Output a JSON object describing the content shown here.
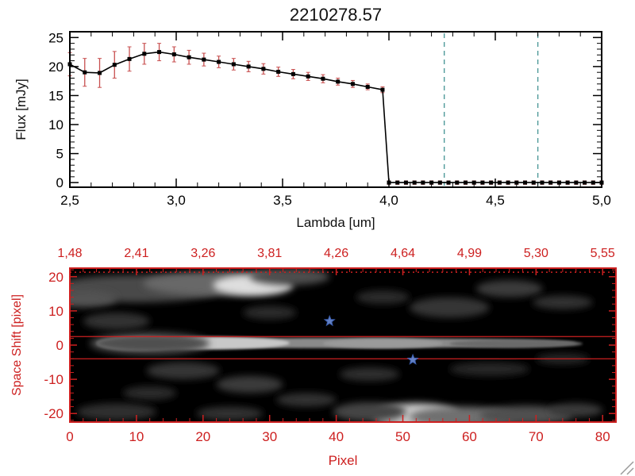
{
  "window": {
    "background": "#ffffff"
  },
  "chart_data": [
    {
      "type": "line",
      "title": "2210278.57",
      "xlabel": "Lambda [um]",
      "ylabel": "Flux [mJy]",
      "xlim": [
        2.5,
        5.0
      ],
      "ylim": [
        0,
        25
      ],
      "grid": false,
      "line_color": "#000000",
      "marker": "filled-square",
      "error_color": "#c85050",
      "axis_color": "#000000",
      "x_ticks": [
        {
          "v": 2.5,
          "label": "2,5"
        },
        {
          "v": 3.0,
          "label": "3,0"
        },
        {
          "v": 3.5,
          "label": "3,5"
        },
        {
          "v": 4.0,
          "label": "4,0"
        },
        {
          "v": 4.5,
          "label": "4,5"
        },
        {
          "v": 5.0,
          "label": "5,0"
        }
      ],
      "y_ticks": [
        {
          "v": 0,
          "label": "0"
        },
        {
          "v": 5,
          "label": "5"
        },
        {
          "v": 10,
          "label": "10"
        },
        {
          "v": 15,
          "label": "15"
        },
        {
          "v": 20,
          "label": "20"
        },
        {
          "v": 25,
          "label": "25"
        }
      ],
      "dashed_vlines": {
        "color": "#4e9a9a",
        "values": [
          4.26,
          4.7
        ]
      },
      "x": [
        2.5,
        2.57,
        2.64,
        2.71,
        2.78,
        2.85,
        2.92,
        2.99,
        3.06,
        3.13,
        3.2,
        3.27,
        3.34,
        3.41,
        3.48,
        3.55,
        3.62,
        3.69,
        3.76,
        3.83,
        3.9,
        3.97,
        4.0,
        4.04,
        4.08,
        4.12,
        4.16,
        4.2,
        4.24,
        4.28,
        4.32,
        4.36,
        4.4,
        4.44,
        4.48,
        4.52,
        4.56,
        4.6,
        4.64,
        4.68,
        4.72,
        4.76,
        4.8,
        4.84,
        4.88,
        4.92,
        4.96,
        5.0
      ],
      "y": [
        20.4,
        19.0,
        18.9,
        20.3,
        21.3,
        22.2,
        22.5,
        22.1,
        21.6,
        21.2,
        20.8,
        20.4,
        20.0,
        19.6,
        19.1,
        18.7,
        18.3,
        17.9,
        17.4,
        17.0,
        16.5,
        16.0,
        0,
        0,
        0,
        0,
        0,
        0,
        0,
        0,
        0,
        0,
        0,
        0,
        0,
        0,
        0,
        0,
        0,
        0,
        0,
        0,
        0,
        0,
        0,
        0,
        0,
        0
      ],
      "yerr": [
        2.0,
        2.4,
        2.5,
        2.3,
        2.1,
        1.8,
        1.5,
        1.3,
        1.2,
        1.1,
        1.0,
        1.0,
        0.9,
        0.9,
        0.8,
        0.8,
        0.7,
        0.7,
        0.6,
        0.6,
        0.5,
        0.5,
        0.3,
        0.3,
        0.3,
        0.3,
        0.3,
        0.3,
        0.3,
        0.3,
        0.3,
        0.3,
        0.3,
        0.3,
        0.3,
        0.3,
        0.3,
        0.3,
        0.3,
        0.3,
        0.3,
        0.3,
        0.3,
        0.3,
        0.3,
        0.3,
        0.3,
        0.3
      ]
    },
    {
      "type": "heatmap",
      "title": "",
      "xlabel": "Pixel",
      "ylabel": "Space Shift [pixel]",
      "xlim": [
        0,
        82
      ],
      "ylim": [
        -22.5,
        22.5
      ],
      "axis_color": "#cd2020",
      "background": "#000000",
      "x_ticks": [
        {
          "v": 0,
          "label": "0"
        },
        {
          "v": 10,
          "label": "10"
        },
        {
          "v": 20,
          "label": "20"
        },
        {
          "v": 30,
          "label": "30"
        },
        {
          "v": 40,
          "label": "40"
        },
        {
          "v": 50,
          "label": "50"
        },
        {
          "v": 60,
          "label": "60"
        },
        {
          "v": 70,
          "label": "70"
        },
        {
          "v": 80,
          "label": "80"
        }
      ],
      "y_ticks": [
        {
          "v": 20,
          "label": "20"
        },
        {
          "v": 10,
          "label": "10"
        },
        {
          "v": 0,
          "label": "0"
        },
        {
          "v": -10,
          "label": "-10"
        },
        {
          "v": -20,
          "label": "-20"
        }
      ],
      "top_axis_labels": [
        {
          "v": 0,
          "label": "1,48"
        },
        {
          "v": 10,
          "label": "2,41"
        },
        {
          "v": 20,
          "label": "3,26"
        },
        {
          "v": 30,
          "label": "3,81"
        },
        {
          "v": 40,
          "label": "4,26"
        },
        {
          "v": 50,
          "label": "4,64"
        },
        {
          "v": 60,
          "label": "4,99"
        },
        {
          "v": 70,
          "label": "5,30"
        },
        {
          "v": 80,
          "label": "5,55"
        }
      ],
      "aperture_lines": [
        2.5,
        -4.0
      ],
      "top_dotted_line": 21.3,
      "stars": {
        "color": "#6e8fd8",
        "stroke": "#3c5fb0",
        "points": [
          {
            "x": 39,
            "y": 7
          },
          {
            "x": 51.5,
            "y": -4.3
          }
        ]
      },
      "blobs": [
        {
          "x": 40,
          "y": 0.6,
          "rx": 36,
          "ry": 1.5,
          "c": "#8a8a8a",
          "f": "sharp"
        },
        {
          "x": 20,
          "y": 0.6,
          "rx": 13,
          "ry": 1.9,
          "c": "#c8c8c8",
          "f": "sharp"
        },
        {
          "x": 10.5,
          "y": 0.5,
          "rx": 6.5,
          "ry": 2.1,
          "c": "#ffffff",
          "f": "sharp"
        },
        {
          "x": 47,
          "y": 0.5,
          "rx": 9,
          "ry": 1.4,
          "c": "#9a9a9a",
          "f": "sharp"
        },
        {
          "x": 67,
          "y": 0.4,
          "rx": 10,
          "ry": 1.2,
          "c": "#6a6a6a",
          "f": "sharp"
        },
        {
          "x": 12,
          "y": 0.5,
          "rx": 9,
          "ry": 3.2,
          "c": "#505050",
          "f": "soft"
        },
        {
          "x": 10,
          "y": 16.5,
          "rx": 13,
          "ry": 4,
          "c": "#484848",
          "f": "soft"
        },
        {
          "x": 22,
          "y": 18,
          "rx": 11,
          "ry": 3.5,
          "c": "#676767",
          "f": "soft"
        },
        {
          "x": 27.5,
          "y": 17.5,
          "rx": 6,
          "ry": 3,
          "c": "#dedede",
          "f": "soft"
        },
        {
          "x": 2,
          "y": 13.5,
          "rx": 5,
          "ry": 2.5,
          "c": "#525252",
          "f": "soft"
        },
        {
          "x": 33,
          "y": 20,
          "rx": 6,
          "ry": 2.5,
          "c": "#4e4e4e",
          "f": "soft"
        },
        {
          "x": 57,
          "y": 11,
          "rx": 6,
          "ry": 3,
          "c": "#353535",
          "f": "soft"
        },
        {
          "x": 66,
          "y": 16.5,
          "rx": 5,
          "ry": 2.5,
          "c": "#3a3a3a",
          "f": "soft"
        },
        {
          "x": 74,
          "y": 12.5,
          "rx": 4.5,
          "ry": 2,
          "c": "#303030",
          "f": "soft"
        },
        {
          "x": 47,
          "y": 14,
          "rx": 4,
          "ry": 2,
          "c": "#2c2c2c",
          "f": "soft"
        },
        {
          "x": 7,
          "y": 7,
          "rx": 5,
          "ry": 2.5,
          "c": "#303030",
          "f": "soft"
        },
        {
          "x": 30,
          "y": 9.5,
          "rx": 4,
          "ry": 2,
          "c": "#2a2a2a",
          "f": "soft"
        },
        {
          "x": 17,
          "y": -7.5,
          "rx": 5.5,
          "ry": 2.5,
          "c": "#343434",
          "f": "soft"
        },
        {
          "x": 27,
          "y": -11.5,
          "rx": 5,
          "ry": 2.5,
          "c": "#3a3a3a",
          "f": "soft"
        },
        {
          "x": 35.5,
          "y": -16,
          "rx": 4.5,
          "ry": 2,
          "c": "#333333",
          "f": "soft"
        },
        {
          "x": 45,
          "y": -8.5,
          "rx": 4.5,
          "ry": 2,
          "c": "#2f2f2f",
          "f": "soft"
        },
        {
          "x": 12,
          "y": -14,
          "rx": 4,
          "ry": 2,
          "c": "#2b2b2b",
          "f": "soft"
        },
        {
          "x": 63,
          "y": -7,
          "rx": 6,
          "ry": 2,
          "c": "#282828",
          "f": "soft"
        },
        {
          "x": 74,
          "y": -4,
          "rx": 4,
          "ry": 1.6,
          "c": "#262626",
          "f": "soft"
        },
        {
          "x": 52,
          "y": -20.5,
          "rx": 6.5,
          "ry": 3.5,
          "c": "#cccccc",
          "f": "soft"
        },
        {
          "x": 59,
          "y": -21,
          "rx": 8,
          "ry": 3,
          "c": "#6f6f6f",
          "f": "soft"
        },
        {
          "x": 68.5,
          "y": -20.5,
          "rx": 7,
          "ry": 2.8,
          "c": "#4f4f4f",
          "f": "soft"
        },
        {
          "x": 45,
          "y": -19.5,
          "rx": 5.5,
          "ry": 2.8,
          "c": "#454545",
          "f": "soft"
        },
        {
          "x": 76,
          "y": -19,
          "rx": 4,
          "ry": 2,
          "c": "#3a3a3a",
          "f": "soft"
        },
        {
          "x": 7,
          "y": -19.5,
          "rx": 6,
          "ry": 2.5,
          "c": "#2d2d2d",
          "f": "soft"
        },
        {
          "x": 24,
          "y": -20,
          "rx": 5,
          "ry": 2,
          "c": "#303030",
          "f": "soft"
        }
      ]
    }
  ]
}
